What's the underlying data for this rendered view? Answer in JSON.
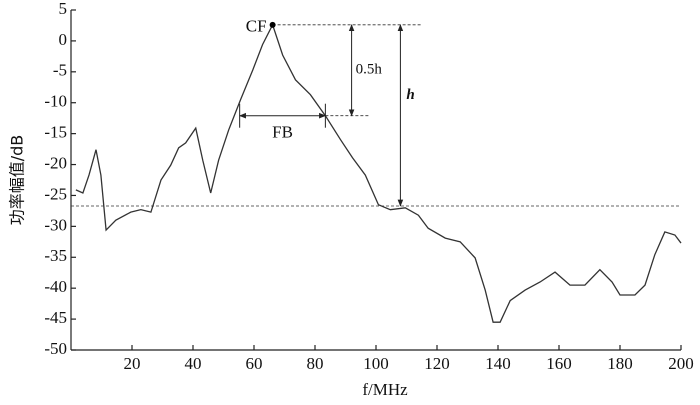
{
  "chart_data": {
    "type": "line",
    "x_label": "f/MHz",
    "y_label": "功率幅值/dB",
    "x": [
      1.6,
      3.9,
      5.9,
      8.2,
      9.8,
      11.5,
      14.7,
      19.6,
      22.9,
      26.2,
      29.5,
      32.7,
      35.3,
      37.6,
      40.9,
      43.2,
      45.8,
      48.4,
      51.7,
      55.6,
      59.6,
      62.8,
      66.1,
      69.4,
      73.6,
      78.5,
      83.4,
      88.4,
      92.3,
      96.5,
      100.8,
      104.7,
      109.6,
      113.9,
      117.1,
      122.7,
      127.6,
      132.5,
      135.8,
      138.4,
      140.7,
      144.0,
      148.9,
      153.8,
      158.7,
      163.6,
      168.5,
      173.4,
      177.4,
      180.0,
      184.9,
      188.2,
      191.4,
      194.7,
      198.0,
      200.0
    ],
    "values": [
      -24.1,
      -24.6,
      -21.7,
      -17.6,
      -21.7,
      -30.6,
      -29.0,
      -27.7,
      -27.3,
      -27.7,
      -22.5,
      -20.1,
      -17.3,
      -16.5,
      -14.1,
      -19.3,
      -24.6,
      -19.3,
      -14.4,
      -9.5,
      -4.7,
      -0.6,
      2.6,
      -2.3,
      -6.3,
      -8.7,
      -12.1,
      -16.0,
      -18.9,
      -21.7,
      -26.5,
      -27.3,
      -27.0,
      -28.2,
      -30.3,
      -31.9,
      -32.5,
      -35.1,
      -40.3,
      -45.5,
      -45.5,
      -42.0,
      -40.3,
      -39.0,
      -37.4,
      -39.5,
      -39.5,
      -37.0,
      -39.0,
      -41.1,
      -41.1,
      -39.5,
      -34.6,
      -30.9,
      -31.4,
      -32.7
    ],
    "color": "#333333",
    "xlim": [
      0,
      200
    ],
    "ylim": [
      -50,
      5
    ],
    "xticks": [
      20,
      40,
      60,
      80,
      100,
      120,
      140,
      160,
      180,
      200
    ],
    "yticks": [
      5,
      0,
      -5,
      -10,
      -15,
      -20,
      -25,
      -30,
      -35,
      -40,
      -45,
      -50
    ],
    "cf": {
      "label": "CF",
      "x": 66.1,
      "y": 2.6
    },
    "fb": {
      "label": "FB",
      "x1": 55.3,
      "x2": 83.4,
      "y": -12.1
    },
    "half_h": {
      "label": "0.5h",
      "x": 92,
      "y1": 2.6,
      "y2": -12.1
    },
    "h": {
      "label": "h",
      "x": 108,
      "y1": 2.6,
      "y2": -26.7
    }
  }
}
